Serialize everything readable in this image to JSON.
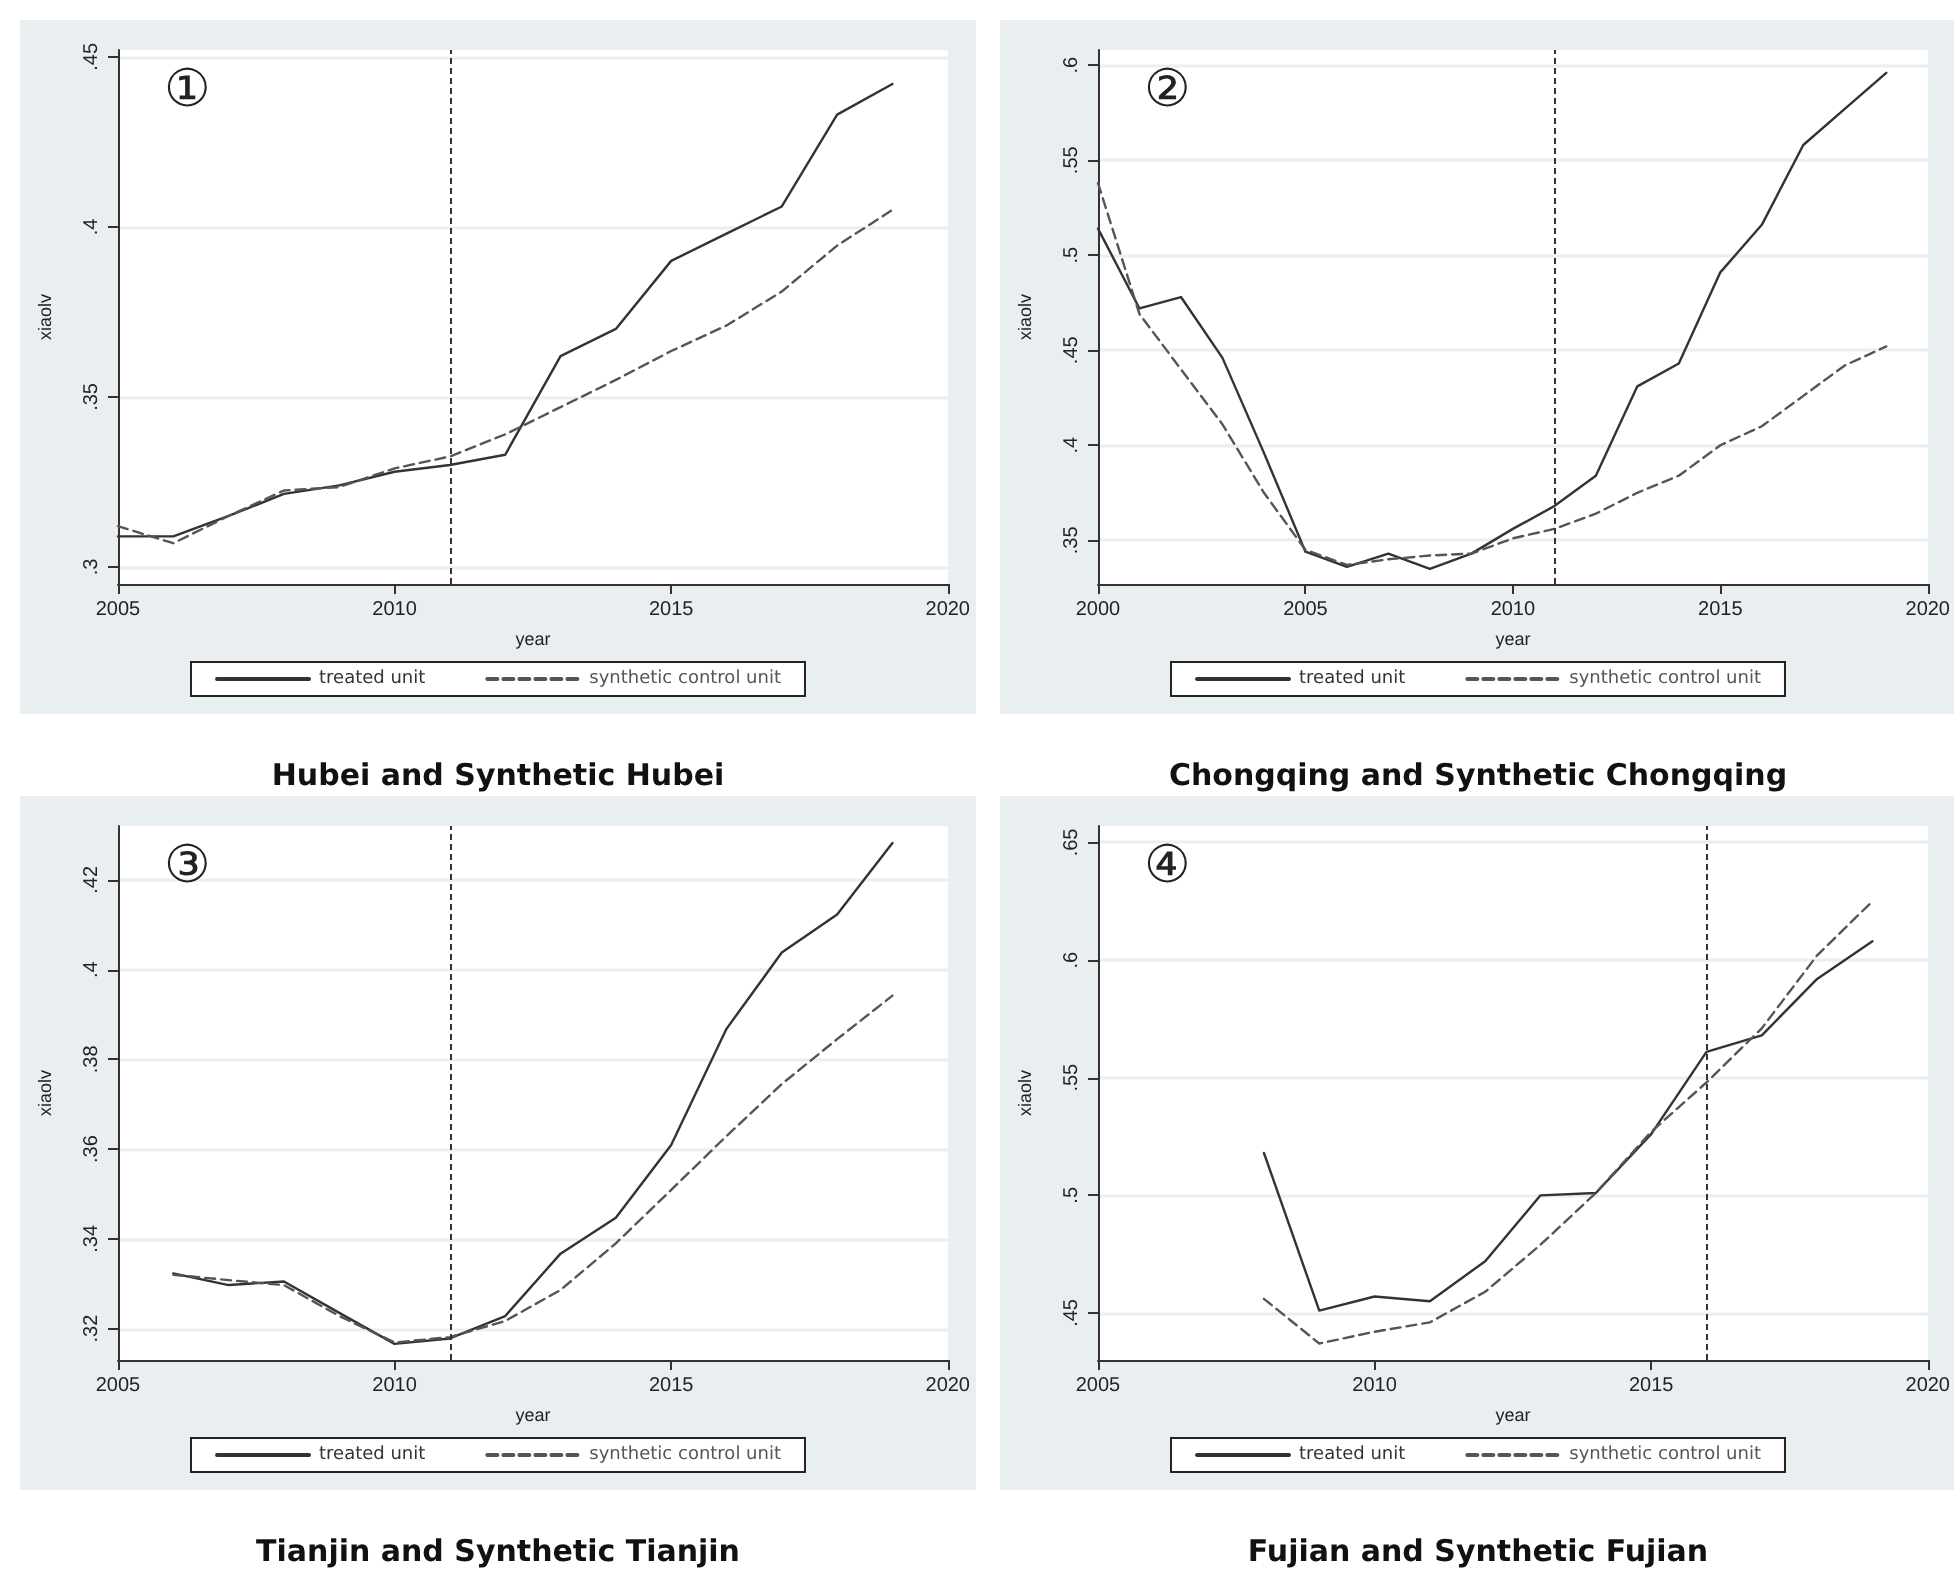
{
  "chart_data": [
    {
      "type": "line",
      "title": "Hubei and Synthetic Hubei",
      "xlabel": "year",
      "ylabel": "xiaolv",
      "annotations": [
        "①"
      ],
      "legend": "bottom",
      "grid": "y",
      "marker": "none",
      "x": [
        2005,
        2006,
        2007,
        2008,
        2009,
        2010,
        2011,
        2012,
        2013,
        2014,
        2015,
        2016,
        2017,
        2018,
        2019
      ],
      "series": [
        {
          "name": "treated unit",
          "color": "#333333",
          "line_style": "solid",
          "values": [
            0.309,
            0.309,
            0.315,
            0.3215,
            0.324,
            0.328,
            0.33,
            0.333,
            0.362,
            0.37,
            0.39,
            0.398,
            0.406,
            0.433,
            0.442
          ]
        },
        {
          "name": "synthetic control unit",
          "color": "#555555",
          "line_style": "dashed",
          "values": [
            0.312,
            0.307,
            0.315,
            0.3225,
            0.3235,
            0.329,
            0.3325,
            0.339,
            0.347,
            0.355,
            0.3635,
            0.371,
            0.381,
            0.3945,
            0.405
          ]
        }
      ],
      "xlim": [
        2005,
        2020
      ],
      "xticks": [
        2005,
        2010,
        2015,
        2020
      ],
      "ylim": [
        0.295,
        0.452
      ],
      "yticks": [
        {
          "value": 0.3,
          "label": ".3"
        },
        {
          "value": 0.35,
          "label": ".35"
        },
        {
          "value": 0.4,
          "label": ".4"
        },
        {
          "value": 0.45,
          "label": ".45"
        }
      ],
      "ref_lines": [
        {
          "axis": "x",
          "value": 2011,
          "color": "#333333",
          "line_style": "dashed"
        }
      ]
    },
    {
      "type": "line",
      "title": "Chongqing and Synthetic Chongqing",
      "xlabel": "year",
      "ylabel": "xiaolv",
      "annotations": [
        "②"
      ],
      "legend": "bottom",
      "grid": "y",
      "marker": "none",
      "x": [
        2000,
        2001,
        2002,
        2003,
        2004,
        2005,
        2006,
        2007,
        2008,
        2009,
        2010,
        2011,
        2012,
        2013,
        2014,
        2015,
        2016,
        2017,
        2018,
        2019
      ],
      "series": [
        {
          "name": "treated unit",
          "color": "#333333",
          "line_style": "solid",
          "values": [
            0.514,
            0.472,
            0.478,
            0.446,
            0.396,
            0.344,
            0.336,
            0.343,
            0.335,
            0.343,
            0.356,
            0.368,
            0.384,
            0.431,
            0.443,
            0.491,
            0.516,
            0.558,
            0.577,
            0.596
          ]
        },
        {
          "name": "synthetic control unit",
          "color": "#555555",
          "line_style": "dashed",
          "values": [
            0.538,
            0.469,
            0.44,
            0.411,
            0.375,
            0.345,
            0.337,
            0.34,
            0.342,
            0.343,
            0.351,
            0.356,
            0.364,
            0.375,
            0.384,
            0.4,
            0.41,
            0.426,
            0.442,
            0.452
          ]
        }
      ],
      "xlim": [
        2000,
        2020
      ],
      "xticks": [
        2000,
        2005,
        2010,
        2015,
        2020
      ],
      "ylim": [
        0.327,
        0.608
      ],
      "yticks": [
        {
          "value": 0.35,
          "label": ".35"
        },
        {
          "value": 0.4,
          "label": ".4"
        },
        {
          "value": 0.45,
          "label": ".45"
        },
        {
          "value": 0.5,
          "label": ".5"
        },
        {
          "value": 0.55,
          "label": ".55"
        },
        {
          "value": 0.6,
          "label": ".6"
        }
      ],
      "ref_lines": [
        {
          "axis": "x",
          "value": 2011,
          "color": "#333333",
          "line_style": "dashed"
        }
      ]
    },
    {
      "type": "line",
      "title": "Tianjin and Synthetic Tianjin",
      "xlabel": "year",
      "ylabel": "xiaolv",
      "annotations": [
        "③"
      ],
      "legend": "bottom",
      "grid": "y",
      "marker": "none",
      "x": [
        2006,
        2007,
        2008,
        2009,
        2010,
        2011,
        2012,
        2013,
        2014,
        2015,
        2016,
        2017,
        2018,
        2019
      ],
      "series": [
        {
          "name": "treated unit",
          "color": "#333333",
          "line_style": "solid",
          "values": [
            0.3323,
            0.3297,
            0.3305,
            0.3235,
            0.3166,
            0.3178,
            0.3228,
            0.3367,
            0.3447,
            0.3609,
            0.3868,
            0.4038,
            0.4123,
            0.4282
          ]
        },
        {
          "name": "synthetic control unit",
          "color": "#555555",
          "line_style": "dashed",
          "values": [
            0.332,
            0.3308,
            0.3297,
            0.3228,
            0.3169,
            0.3181,
            0.3217,
            0.3286,
            0.339,
            0.3509,
            0.3629,
            0.3745,
            0.3845,
            0.3942
          ]
        }
      ],
      "xlim": [
        2005,
        2020
      ],
      "xticks": [
        2005,
        2010,
        2015,
        2020
      ],
      "ylim": [
        0.313,
        0.432
      ],
      "yticks": [
        {
          "value": 0.32,
          "label": ".32"
        },
        {
          "value": 0.34,
          "label": ".34"
        },
        {
          "value": 0.36,
          "label": ".36"
        },
        {
          "value": 0.38,
          "label": ".38"
        },
        {
          "value": 0.4,
          "label": ".4"
        },
        {
          "value": 0.42,
          "label": ".42"
        }
      ],
      "ref_lines": [
        {
          "axis": "x",
          "value": 2011,
          "color": "#333333",
          "line_style": "dashed"
        }
      ]
    },
    {
      "type": "line",
      "title": "Fujian and Synthetic Fujian",
      "xlabel": "year",
      "ylabel": "xiaolv",
      "annotations": [
        "④"
      ],
      "legend": "bottom",
      "grid": "y",
      "marker": "none",
      "x": [
        2008,
        2009,
        2010,
        2011,
        2012,
        2013,
        2014,
        2015,
        2016,
        2017,
        2018,
        2019
      ],
      "series": [
        {
          "name": "treated unit",
          "color": "#333333",
          "line_style": "solid",
          "values": [
            0.518,
            0.451,
            0.457,
            0.455,
            0.472,
            0.5,
            0.501,
            0.526,
            0.561,
            0.568,
            0.592,
            0.608
          ]
        },
        {
          "name": "synthetic control unit",
          "color": "#555555",
          "line_style": "dashed",
          "values": [
            0.456,
            0.437,
            0.442,
            0.446,
            0.459,
            0.479,
            0.501,
            0.527,
            0.548,
            0.571,
            0.602,
            0.625
          ]
        }
      ],
      "xlim": [
        2005,
        2020
      ],
      "xticks": [
        2005,
        2010,
        2015,
        2020
      ],
      "ylim": [
        0.43,
        0.657
      ],
      "yticks": [
        {
          "value": 0.45,
          "label": ".45"
        },
        {
          "value": 0.5,
          "label": ".5"
        },
        {
          "value": 0.55,
          "label": ".55"
        },
        {
          "value": 0.6,
          "label": ".6"
        },
        {
          "value": 0.65,
          "label": ".65"
        }
      ],
      "ref_lines": [
        {
          "axis": "x",
          "value": 2016,
          "color": "#333333",
          "line_style": "dashed"
        }
      ]
    }
  ]
}
